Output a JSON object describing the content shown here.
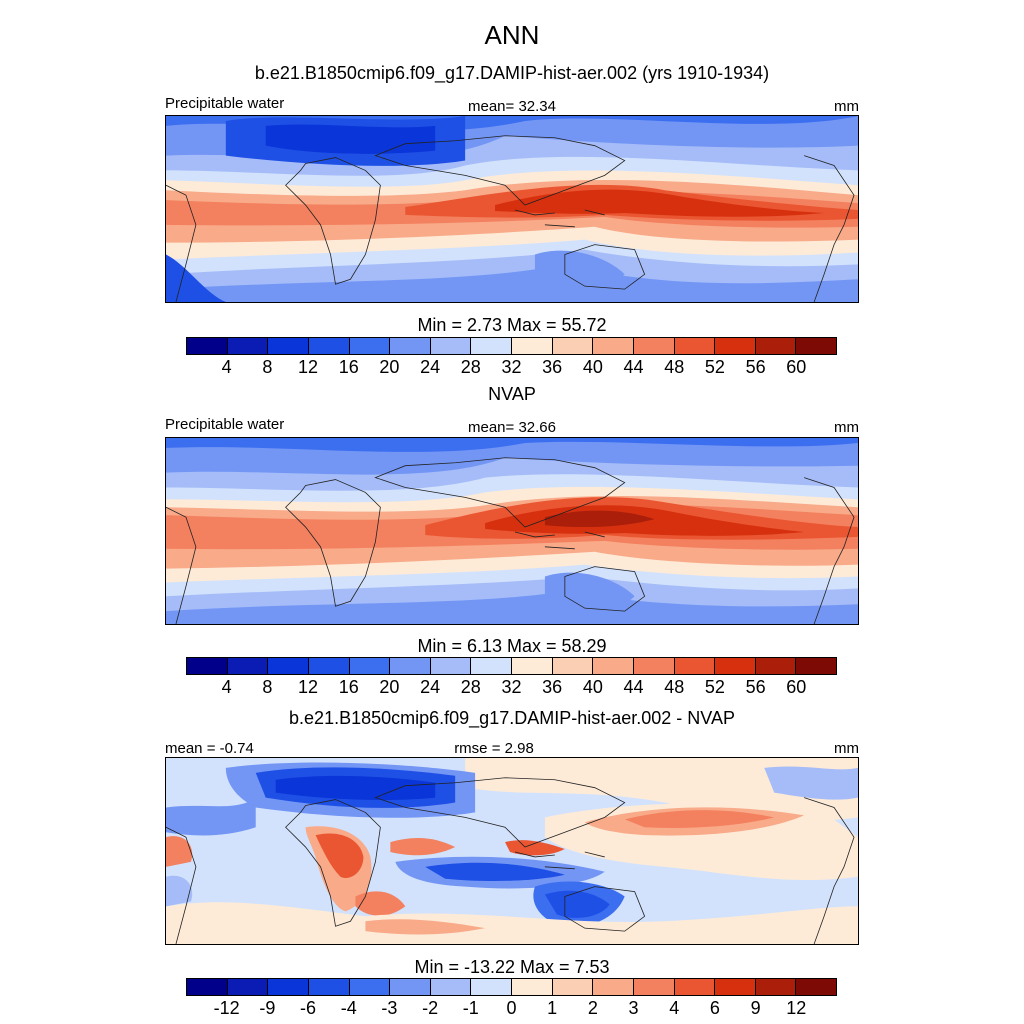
{
  "page": {
    "title": "ANN",
    "subtitle": "b.e21.B1850cmip6.f09_g17.DAMIP-hist-aer.002 (yrs 1910-1934)"
  },
  "colors": [
    "#00008b",
    "#0a1cb4",
    "#0a35d8",
    "#1e50e6",
    "#3c6ef0",
    "#7396f5",
    "#a5bcf8",
    "#d2e2fc",
    "#fdebd8",
    "#fbcfb4",
    "#f8aa89",
    "#f3805e",
    "#ea5631",
    "#d6300f",
    "#aa1e0a",
    "#7d0a05"
  ],
  "panels": [
    {
      "name": "model",
      "left_label": "Precipitable water",
      "center_label": "mean=  32.34",
      "units": "mm",
      "minmax": "Min =   2.73 Max =  55.72",
      "ticks": [
        "4",
        "8",
        "12",
        "16",
        "20",
        "24",
        "28",
        "32",
        "36",
        "40",
        "44",
        "48",
        "52",
        "56",
        "60"
      ]
    },
    {
      "name": "obs",
      "title": "NVAP",
      "left_label": "Precipitable water",
      "center_label": "mean=  32.66",
      "units": "mm",
      "minmax": "Min =   6.13 Max =  58.29",
      "ticks": [
        "4",
        "8",
        "12",
        "16",
        "20",
        "24",
        "28",
        "32",
        "36",
        "40",
        "44",
        "48",
        "52",
        "56",
        "60"
      ]
    },
    {
      "name": "diff",
      "title": "b.e21.B1850cmip6.f09_g17.DAMIP-hist-aer.002 - NVAP",
      "left_label": "mean =  -0.74",
      "center_label": "rmse =   2.98",
      "units": "mm",
      "minmax": "Min = -13.22 Max =   7.53",
      "ticks": [
        "-12",
        "-9",
        "-6",
        "-4",
        "-3",
        "-2",
        "-1",
        "0",
        "1",
        "2",
        "3",
        "4",
        "6",
        "9",
        "12"
      ]
    }
  ],
  "chart_data": [
    {
      "type": "heatmap",
      "title": "ANN",
      "subtitle": "b.e21.B1850cmip6.f09_g17.DAMIP-hist-aer.002 (yrs 1910-1934)",
      "variable": "Precipitable water",
      "units": "mm",
      "mean": 32.34,
      "min": 2.73,
      "max": 55.72,
      "levels": [
        4,
        8,
        12,
        16,
        20,
        24,
        28,
        32,
        36,
        40,
        44,
        48,
        52,
        56,
        60
      ]
    },
    {
      "type": "heatmap",
      "title": "NVAP",
      "variable": "Precipitable water",
      "units": "mm",
      "mean": 32.66,
      "min": 6.13,
      "max": 58.29,
      "levels": [
        4,
        8,
        12,
        16,
        20,
        24,
        28,
        32,
        36,
        40,
        44,
        48,
        52,
        56,
        60
      ]
    },
    {
      "type": "heatmap",
      "title": "b.e21.B1850cmip6.f09_g17.DAMIP-hist-aer.002 - NVAP",
      "units": "mm",
      "mean": -0.74,
      "rmse": 2.98,
      "min": -13.22,
      "max": 7.53,
      "levels": [
        -12,
        -9,
        -6,
        -4,
        -3,
        -2,
        -1,
        0,
        1,
        2,
        3,
        4,
        6,
        9,
        12
      ]
    }
  ]
}
